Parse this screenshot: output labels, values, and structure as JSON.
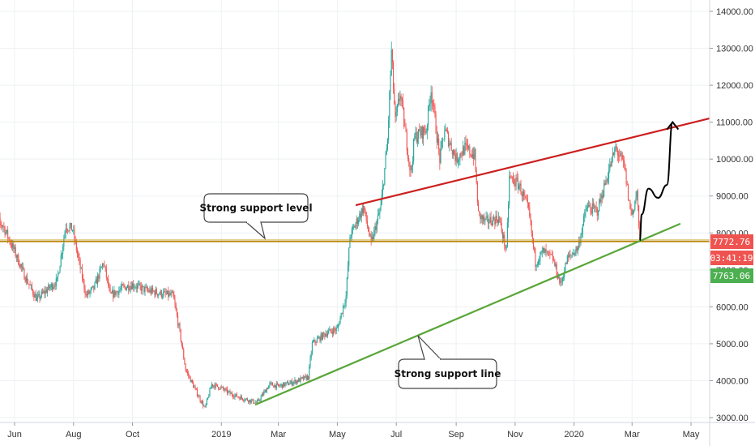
{
  "chart_data": {
    "type": "candlestick",
    "title": "",
    "xlabel": "",
    "ylabel": "",
    "ylim": [
      2950,
      14400
    ],
    "x_axis": {
      "start_date": "2018-05-08",
      "end_date": "2020-05-18",
      "tick_labels": [
        {
          "date": "2018-06-01",
          "label": "Jun"
        },
        {
          "date": "2018-08-01",
          "label": "Aug"
        },
        {
          "date": "2018-10-01",
          "label": "Oct"
        },
        {
          "date": "2019-01-01",
          "label": "2019"
        },
        {
          "date": "2019-03-01",
          "label": "Mar"
        },
        {
          "date": "2019-05-01",
          "label": "May"
        },
        {
          "date": "2019-07-01",
          "label": "Jul"
        },
        {
          "date": "2019-09-01",
          "label": "Sep"
        },
        {
          "date": "2019-11-01",
          "label": "Nov"
        },
        {
          "date": "2020-01-01",
          "label": "2020"
        },
        {
          "date": "2020-03-01",
          "label": "Mar"
        },
        {
          "date": "2020-05-01",
          "label": "May"
        }
      ]
    },
    "y_axis": {
      "tick_labels": [
        "3000.00",
        "4000.00",
        "5000.00",
        "6000.00",
        "7000.00",
        "8000.00",
        "9000.00",
        "10000.00",
        "11000.00",
        "12000.00",
        "13000.00",
        "14000.00"
      ],
      "tick_values": [
        3000,
        4000,
        5000,
        6000,
        7000,
        8000,
        9000,
        10000,
        11000,
        12000,
        13000,
        14000
      ]
    },
    "price_path": [
      [
        "2018-05-08",
        8450
      ],
      [
        "2018-05-20",
        8200
      ],
      [
        "2018-06-01",
        7500
      ],
      [
        "2018-06-12",
        6800
      ],
      [
        "2018-06-24",
        6200
      ],
      [
        "2018-07-02",
        6400
      ],
      [
        "2018-07-15",
        6700
      ],
      [
        "2018-07-24",
        8200
      ],
      [
        "2018-07-31",
        8100
      ],
      [
        "2018-08-06",
        7300
      ],
      [
        "2018-08-14",
        6300
      ],
      [
        "2018-08-22",
        6500
      ],
      [
        "2018-09-01",
        7200
      ],
      [
        "2018-09-08",
        6300
      ],
      [
        "2018-09-20",
        6500
      ],
      [
        "2018-10-01",
        6600
      ],
      [
        "2018-10-15",
        6450
      ],
      [
        "2018-11-01",
        6350
      ],
      [
        "2018-11-12",
        6300
      ],
      [
        "2018-11-19",
        5300
      ],
      [
        "2018-11-25",
        4300
      ],
      [
        "2018-12-06",
        3700
      ],
      [
        "2018-12-15",
        3250
      ],
      [
        "2018-12-22",
        3900
      ],
      [
        "2019-01-01",
        3800
      ],
      [
        "2019-01-10",
        3650
      ],
      [
        "2019-01-20",
        3550
      ],
      [
        "2019-02-01",
        3450
      ],
      [
        "2019-02-07",
        3400
      ],
      [
        "2019-02-20",
        3900
      ],
      [
        "2019-03-01",
        3850
      ],
      [
        "2019-03-15",
        3950
      ],
      [
        "2019-04-01",
        4100
      ],
      [
        "2019-04-05",
        5000
      ],
      [
        "2019-04-20",
        5300
      ],
      [
        "2019-05-01",
        5400
      ],
      [
        "2019-05-10",
        6300
      ],
      [
        "2019-05-14",
        7900
      ],
      [
        "2019-05-28",
        8700
      ],
      [
        "2019-06-05",
        7700
      ],
      [
        "2019-06-15",
        8700
      ],
      [
        "2019-06-22",
        10500
      ],
      [
        "2019-06-26",
        12900
      ],
      [
        "2019-06-30",
        11000
      ],
      [
        "2019-07-05",
        11800
      ],
      [
        "2019-07-16",
        9600
      ],
      [
        "2019-07-20",
        10600
      ],
      [
        "2019-08-01",
        10800
      ],
      [
        "2019-08-06",
        11900
      ],
      [
        "2019-08-15",
        10000
      ],
      [
        "2019-08-20",
        10800
      ],
      [
        "2019-09-01",
        10000
      ],
      [
        "2019-09-10",
        10300
      ],
      [
        "2019-09-20",
        10100
      ],
      [
        "2019-09-24",
        8500
      ],
      [
        "2019-10-01",
        8300
      ],
      [
        "2019-10-15",
        8400
      ],
      [
        "2019-10-23",
        7500
      ],
      [
        "2019-10-26",
        9500
      ],
      [
        "2019-11-05",
        9300
      ],
      [
        "2019-11-15",
        8600
      ],
      [
        "2019-11-22",
        7200
      ],
      [
        "2019-11-30",
        7500
      ],
      [
        "2019-12-10",
        7300
      ],
      [
        "2019-12-18",
        6600
      ],
      [
        "2019-12-25",
        7300
      ],
      [
        "2020-01-05",
        7600
      ],
      [
        "2020-01-14",
        8700
      ],
      [
        "2020-01-25",
        8600
      ],
      [
        "2020-02-05",
        9600
      ],
      [
        "2020-02-13",
        10300
      ],
      [
        "2020-02-22",
        9800
      ],
      [
        "2020-02-27",
        8800
      ],
      [
        "2020-03-01",
        8500
      ],
      [
        "2020-03-06",
        9100
      ],
      [
        "2020-03-09",
        7780
      ]
    ],
    "horizontal_levels": [
      {
        "price": 7772.76,
        "label": "Strong support level",
        "color": "#b8860b"
      }
    ],
    "trend_lines": [
      {
        "name": "resistance",
        "color": "#cc1f1f",
        "from": [
          "2019-05-20",
          8750
        ],
        "to": [
          "2020-05-20",
          11100
        ]
      },
      {
        "name": "support",
        "color": "#5aa63a",
        "from": [
          "2019-02-05",
          3350
        ],
        "to": [
          "2020-04-20",
          8250
        ]
      }
    ],
    "projection_path": [
      [
        "2020-03-09",
        7800
      ],
      [
        "2020-03-11",
        8500
      ],
      [
        "2020-03-18",
        9200
      ],
      [
        "2020-03-28",
        8950
      ],
      [
        "2020-04-06",
        9300
      ],
      [
        "2020-04-12",
        11000
      ]
    ],
    "annotations": [
      {
        "text": "Strong support level",
        "target": "horizontal-level"
      },
      {
        "text": "Strong support line",
        "target": "support-trendline"
      }
    ],
    "price_badges": [
      {
        "text": "7772.76",
        "color": "#ef5350"
      },
      {
        "text": "03:41:19",
        "color": "#ef5350"
      },
      {
        "text": "7763.06",
        "color": "#4caf50"
      }
    ],
    "colors": {
      "up": "#26a69a",
      "down": "#ef5350",
      "grid": "#eef0f3",
      "axis": "#d1d4dc"
    }
  }
}
